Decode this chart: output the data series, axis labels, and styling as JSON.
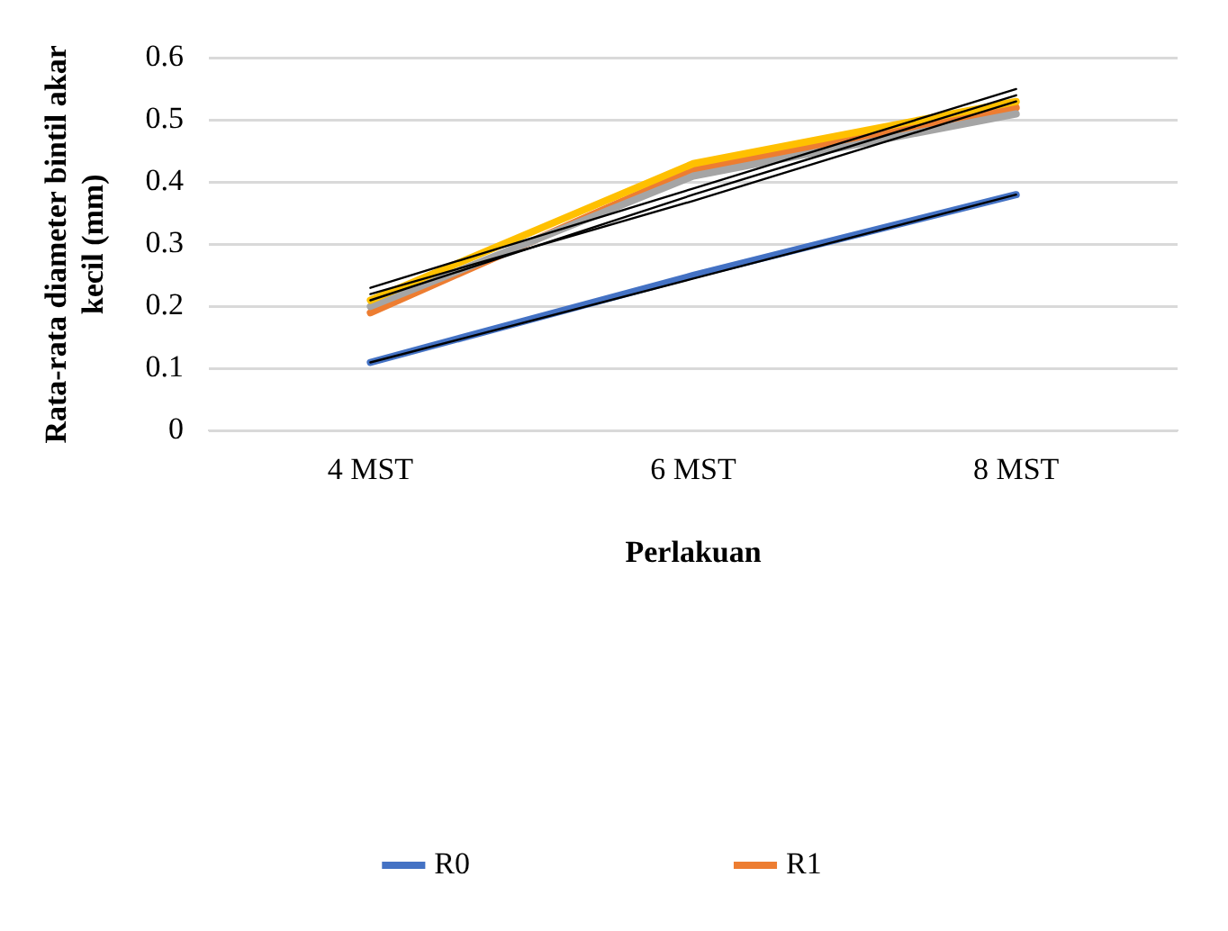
{
  "chart_data": {
    "type": "line",
    "categories": [
      "4 MST",
      "6 MST",
      "8 MST"
    ],
    "xlabel": "Perlakuan",
    "ylabel": "Rata-rata diameter bintil akar kecil (mm)",
    "ylim": [
      0,
      0.6
    ],
    "yticks": [
      0,
      0.1,
      0.2,
      0.3,
      0.4,
      0.5,
      0.6
    ],
    "grid": "y",
    "legend": "bottom",
    "marker": "none",
    "series": [
      {
        "name": "R0",
        "color": "#4472c4",
        "values": [
          0.11,
          0.25,
          0.38
        ]
      },
      {
        "name": "R1",
        "color": "#ed7d31",
        "values": [
          0.19,
          0.42,
          0.52
        ]
      },
      {
        "color": "#a5a5a5",
        "values": [
          0.2,
          0.41,
          0.51
        ]
      },
      {
        "color": "#ffc000",
        "values": [
          0.21,
          0.43,
          0.53
        ]
      },
      {
        "color": "#000000",
        "values": [
          0.11,
          0.245,
          0.38
        ]
      },
      {
        "color": "#000000",
        "values": [
          0.21,
          0.38,
          0.54
        ]
      },
      {
        "color": "#000000",
        "values": [
          0.22,
          0.37,
          0.53
        ]
      },
      {
        "color": "#000000",
        "values": [
          0.23,
          0.39,
          0.55
        ]
      }
    ]
  }
}
